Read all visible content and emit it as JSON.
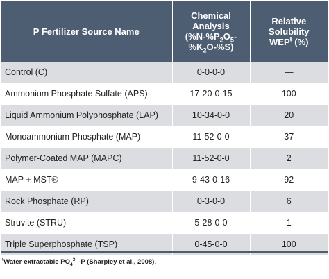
{
  "header": {
    "col1": "P Fertilizer Source Name",
    "col2_line1": "Chemical",
    "col2_line2": "Analysis",
    "col2_line3a": "(%N-%P",
    "col2_line3_sub1": "2",
    "col2_line3b": "O",
    "col2_line3_sub2": "5",
    "col2_line3c": "-",
    "col2_line4a": "%K",
    "col2_line4_sub": "2",
    "col2_line4b": "O-%S)",
    "col3_line1": "Relative",
    "col3_line2": "Solubility",
    "col3_line3a": "WEP",
    "col3_line3_sup": "ŧ",
    "col3_line3b": " (%)"
  },
  "rows": [
    {
      "name": "Control (C)",
      "analysis": "0-0-0-0",
      "solubility": "—"
    },
    {
      "name": "Ammonium Phosphate Sulfate (APS)",
      "analysis": "17-20-0-15",
      "solubility": "100"
    },
    {
      "name": "Liquid Ammonium Polyphosphate (LAP)",
      "analysis": "10-34-0-0",
      "solubility": "20"
    },
    {
      "name": "Monoammonium Phosphate (MAP)",
      "analysis": "11-52-0-0",
      "solubility": "37"
    },
    {
      "name": "Polymer-Coated MAP (MAPC)",
      "analysis": "11-52-0-0",
      "solubility": "2"
    },
    {
      "name": "MAP + MST®",
      "analysis": "9-43-0-16",
      "solubility": "92"
    },
    {
      "name": "Rock Phosphate (RP)",
      "analysis": "0-3-0-0",
      "solubility": "6"
    },
    {
      "name": "Struvite (STRU)",
      "analysis": "5-28-0-0",
      "solubility": "1"
    },
    {
      "name": "Triple Superphosphate (TSP)",
      "analysis": "0-45-0-0",
      "solubility": "100"
    }
  ],
  "footnote": {
    "mark": "ŧ",
    "text_a": "Water-extractable PO",
    "sub": "4",
    "sup": "3-",
    "text_b": " -P (Sharpley et al., 2008)."
  },
  "colors": {
    "header_bg": "#4d5d72",
    "row_shade": "#dcdde0"
  }
}
